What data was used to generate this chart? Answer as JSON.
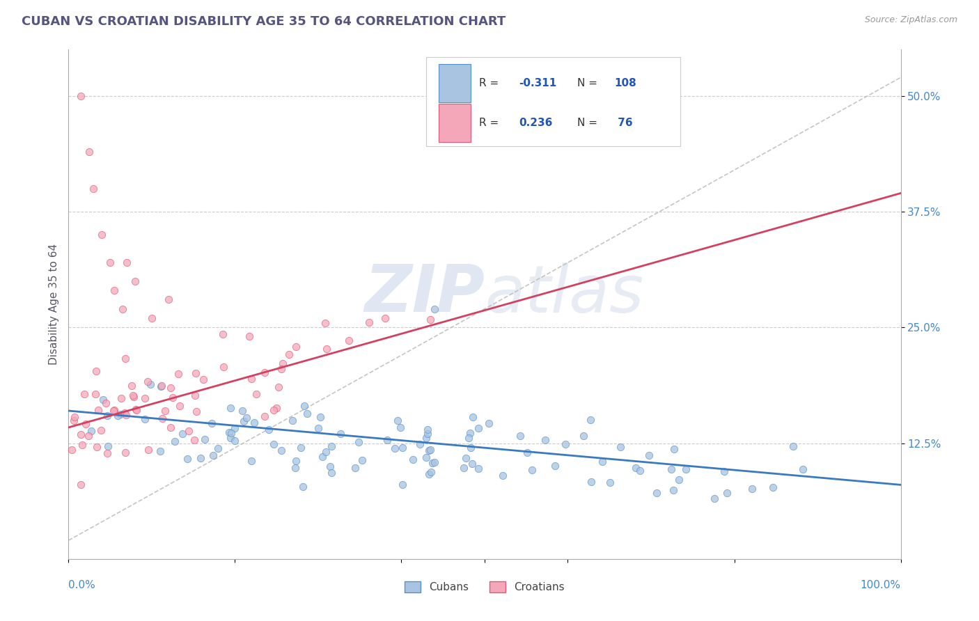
{
  "title": "CUBAN VS CROATIAN DISABILITY AGE 35 TO 64 CORRELATION CHART",
  "source": "Source: ZipAtlas.com",
  "ylabel": "Disability Age 35 to 64",
  "ytick_labels": [
    "12.5%",
    "25.0%",
    "37.5%",
    "50.0%"
  ],
  "ytick_vals": [
    0.125,
    0.25,
    0.375,
    0.5
  ],
  "xlim": [
    0.0,
    1.0
  ],
  "ylim": [
    0.0,
    0.55
  ],
  "cuban_color": "#a8c4e0",
  "croatian_color": "#f4a7b9",
  "cuban_edge_color": "#5590cc",
  "croatian_edge_color": "#e05878",
  "cuban_line_color": "#3a7abf",
  "croatian_line_color": "#d44060",
  "trend_line_color": "#bbbbbb",
  "background_color": "#ffffff",
  "grid_color": "#cccccc",
  "title_color": "#555580",
  "watermark_color": "#d5dff0",
  "legend_label_color": "#333333",
  "legend_val_color": "#2255bb",
  "axis_tick_color": "#4488cc"
}
